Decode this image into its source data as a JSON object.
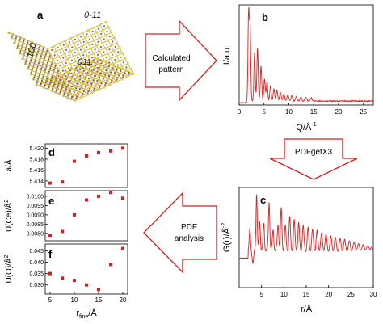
{
  "panels": {
    "a": {
      "letter": "a",
      "faces": [
        "0-11",
        "100",
        "011"
      ]
    },
    "b": {
      "letter": "b",
      "ylabel": "I/a.u.",
      "xlabel": "Q/Å",
      "xlabel_sup": "-1"
    },
    "c": {
      "letter": "c",
      "ylabel": "G(r)/Å",
      "ylabel_sup": "-2",
      "xlabel": "r/Å"
    },
    "d": {
      "letter": "d",
      "ylabel": "a/Å"
    },
    "e": {
      "letter": "e",
      "ylabel": "U(Ce)/Å",
      "ylabel_sup": "2"
    },
    "f": {
      "letter": "f",
      "ylabel": "U(O)/Å",
      "ylabel_sup": "2",
      "xlabel_main": "r",
      "xlabel_sub": "fine",
      "xlabel_tail": "/Å"
    }
  },
  "arrows": {
    "calc": {
      "line1": "Calculated",
      "line2": "pattern"
    },
    "pdfget": {
      "label": "PDFgetX3"
    },
    "pdf": {
      "line1": "PDF",
      "line2": "analysis"
    }
  },
  "colors": {
    "data": "#d42020",
    "arrow": "#d42020"
  },
  "chart_data": [
    {
      "type": "line",
      "panel": "b",
      "xlabel": "Q/Å-1",
      "ylabel": "I/a.u.",
      "xlim": [
        0,
        27
      ],
      "x_ticks": [
        "0",
        "5",
        "10",
        "15",
        "20",
        "25"
      ],
      "y_ticks": [],
      "peaks": [
        {
          "x": 1.9,
          "y": 1.0
        },
        {
          "x": 2.2,
          "y": 0.85
        },
        {
          "x": 3.1,
          "y": 0.55
        },
        {
          "x": 3.7,
          "y": 0.6
        },
        {
          "x": 4.4,
          "y": 0.4
        },
        {
          "x": 5.1,
          "y": 0.25
        },
        {
          "x": 5.6,
          "y": 0.22
        },
        {
          "x": 6.3,
          "y": 0.17
        },
        {
          "x": 7.0,
          "y": 0.14
        },
        {
          "x": 7.6,
          "y": 0.12
        },
        {
          "x": 8.3,
          "y": 0.1
        },
        {
          "x": 9.0,
          "y": 0.08
        },
        {
          "x": 9.8,
          "y": 0.07
        },
        {
          "x": 10.6,
          "y": 0.06
        },
        {
          "x": 11.5,
          "y": 0.05
        },
        {
          "x": 12.4,
          "y": 0.045
        },
        {
          "x": 13.4,
          "y": 0.04
        },
        {
          "x": 14.5,
          "y": 0.035
        }
      ]
    },
    {
      "type": "line",
      "panel": "c",
      "xlabel": "r/Å",
      "ylabel": "G(r)/Å-2",
      "xlim": [
        0,
        30
      ],
      "x_ticks": [
        "5",
        "10",
        "15",
        "20",
        "25",
        "30"
      ],
      "y_ticks": [],
      "peaks": [
        {
          "x": 2.4,
          "y": 0.35
        },
        {
          "x": 3.9,
          "y": 1.0
        },
        {
          "x": 4.6,
          "y": 0.5
        },
        {
          "x": 5.5,
          "y": 0.45
        },
        {
          "x": 6.7,
          "y": 0.85
        },
        {
          "x": 7.6,
          "y": 0.35
        },
        {
          "x": 8.7,
          "y": 0.45
        },
        {
          "x": 9.4,
          "y": 0.7
        },
        {
          "x": 10.3,
          "y": 0.4
        },
        {
          "x": 11.3,
          "y": 0.55
        },
        {
          "x": 12.3,
          "y": 0.5
        },
        {
          "x": 13.3,
          "y": 0.45
        },
        {
          "x": 14.3,
          "y": 0.4
        },
        {
          "x": 15.4,
          "y": 0.35
        },
        {
          "x": 16.4,
          "y": 0.32
        },
        {
          "x": 17.4,
          "y": 0.3
        },
        {
          "x": 18.4,
          "y": 0.26
        },
        {
          "x": 19.4,
          "y": 0.24
        },
        {
          "x": 20.5,
          "y": 0.2
        },
        {
          "x": 21.5,
          "y": 0.18
        },
        {
          "x": 22.6,
          "y": 0.16
        },
        {
          "x": 23.6,
          "y": 0.14
        },
        {
          "x": 24.7,
          "y": 0.12
        },
        {
          "x": 25.8,
          "y": 0.1
        },
        {
          "x": 26.8,
          "y": 0.08
        },
        {
          "x": 27.9,
          "y": 0.07
        },
        {
          "x": 29.0,
          "y": 0.06
        }
      ]
    },
    {
      "type": "scatter",
      "panel": "d",
      "ylabel": "a/Å",
      "x": [
        5,
        7.5,
        10,
        12.5,
        15,
        17.5,
        20
      ],
      "y": [
        5.4136,
        5.4138,
        5.4176,
        5.4186,
        5.4192,
        5.4195,
        5.42
      ],
      "ylim": [
        5.4128,
        5.4208
      ],
      "y_ticks": [
        "5.414",
        "5.416",
        "5.418",
        "5.420"
      ]
    },
    {
      "type": "scatter",
      "panel": "e",
      "ylabel": "U(Ce)/Å2",
      "x": [
        5,
        7.5,
        10,
        12.5,
        15,
        17.5,
        20
      ],
      "y": [
        0.0079,
        0.0081,
        0.009,
        0.0098,
        0.01,
        0.0102,
        0.0099
      ],
      "ylim": [
        0.0076,
        0.0103
      ],
      "y_ticks": [
        "0.0080",
        "0.0085",
        "0.0090",
        "0.0095",
        "0.0100"
      ]
    },
    {
      "type": "scatter",
      "panel": "f",
      "ylabel": "U(O)/Å2",
      "x": [
        5,
        7.5,
        10,
        12.5,
        15,
        17.5,
        20
      ],
      "y": [
        0.035,
        0.033,
        0.032,
        0.03,
        0.028,
        0.039,
        0.046
      ],
      "xlim": [
        4,
        21
      ],
      "ylim": [
        0.026,
        0.048
      ],
      "x_ticks": [
        "5",
        "10",
        "15",
        "20"
      ],
      "y_ticks": [
        "0.030",
        "0.035",
        "0.040",
        "0.045"
      ]
    }
  ]
}
